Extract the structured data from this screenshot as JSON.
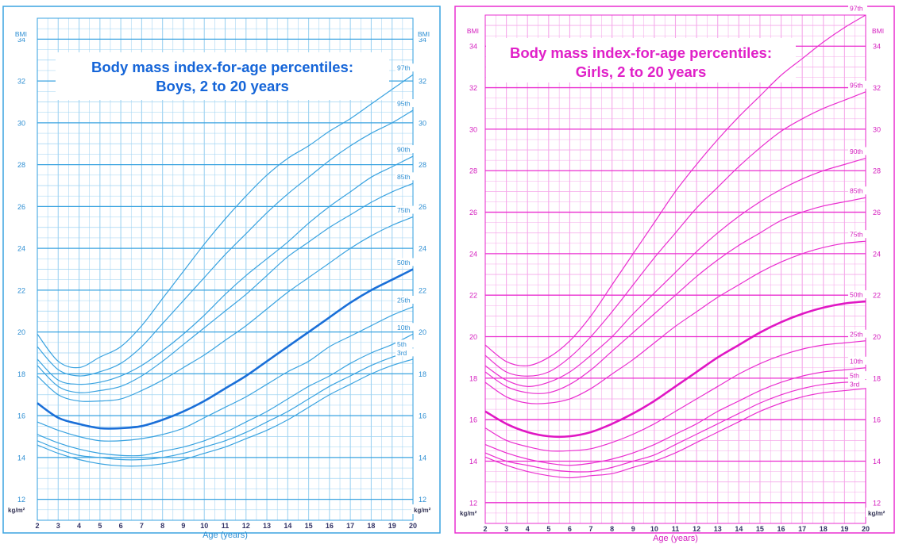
{
  "chart_data": [
    {
      "type": "line",
      "title_line1": "Body mass index-for-age percentiles:",
      "title_line2": "Boys, 2 to 20 years",
      "xlabel": "Age (years)",
      "ylabel_top": "BMI",
      "ylabel_bottom": "kg/m²",
      "xlim": [
        2,
        20
      ],
      "ylim": [
        11,
        35
      ],
      "xticks": [
        2,
        3,
        4,
        5,
        6,
        7,
        8,
        9,
        10,
        11,
        12,
        13,
        14,
        15,
        16,
        17,
        18,
        19,
        20
      ],
      "yticks": [
        12,
        14,
        16,
        18,
        20,
        22,
        24,
        26,
        28,
        30,
        32,
        34
      ],
      "grid": true,
      "colors": {
        "line": "#3aa3e0",
        "grid": "#9fd3f2",
        "text": "#2e8fd3",
        "title": "#1565d8",
        "median": "#1a6fd8"
      },
      "x": [
        2,
        3,
        4,
        5,
        6,
        7,
        8,
        9,
        10,
        11,
        12,
        13,
        14,
        15,
        16,
        17,
        18,
        19,
        20
      ],
      "series": [
        {
          "name": "97th",
          "values": [
            19.9,
            18.6,
            18.3,
            18.8,
            19.3,
            20.3,
            21.6,
            22.9,
            24.2,
            25.4,
            26.5,
            27.5,
            28.3,
            28.9,
            29.6,
            30.2,
            30.9,
            31.6,
            32.3
          ]
        },
        {
          "name": "95th",
          "values": [
            19.3,
            18.2,
            17.9,
            18.1,
            18.5,
            19.3,
            20.4,
            21.5,
            22.6,
            23.7,
            24.7,
            25.7,
            26.6,
            27.4,
            28.2,
            28.9,
            29.5,
            30.0,
            30.6
          ]
        },
        {
          "name": "90th",
          "values": [
            18.7,
            17.7,
            17.5,
            17.6,
            17.9,
            18.4,
            19.1,
            19.9,
            20.8,
            21.8,
            22.7,
            23.5,
            24.3,
            25.2,
            26.0,
            26.7,
            27.4,
            27.9,
            28.4
          ]
        },
        {
          "name": "85th",
          "values": [
            18.4,
            17.4,
            17.1,
            17.2,
            17.4,
            17.9,
            18.6,
            19.4,
            20.2,
            21.0,
            21.8,
            22.7,
            23.6,
            24.3,
            25.0,
            25.6,
            26.2,
            26.7,
            27.1
          ]
        },
        {
          "name": "75th",
          "values": [
            17.9,
            17.0,
            16.7,
            16.7,
            16.8,
            17.2,
            17.7,
            18.3,
            18.9,
            19.6,
            20.3,
            21.1,
            21.9,
            22.6,
            23.3,
            24.0,
            24.6,
            25.1,
            25.5
          ]
        },
        {
          "name": "50th",
          "values": [
            16.6,
            15.9,
            15.6,
            15.4,
            15.4,
            15.5,
            15.8,
            16.2,
            16.7,
            17.3,
            17.9,
            18.6,
            19.3,
            20.0,
            20.7,
            21.4,
            22.0,
            22.5,
            23.0
          ]
        },
        {
          "name": "25th",
          "values": [
            15.7,
            15.3,
            15.0,
            14.8,
            14.8,
            14.9,
            15.1,
            15.4,
            15.9,
            16.4,
            16.9,
            17.5,
            18.1,
            18.6,
            19.3,
            19.8,
            20.3,
            20.8,
            21.2
          ]
        },
        {
          "name": "10th",
          "values": [
            15.1,
            14.7,
            14.4,
            14.2,
            14.1,
            14.1,
            14.3,
            14.5,
            14.8,
            15.2,
            15.7,
            16.2,
            16.8,
            17.4,
            17.9,
            18.5,
            19.0,
            19.4,
            19.9
          ]
        },
        {
          "name": "5th",
          "values": [
            14.8,
            14.4,
            14.1,
            14.0,
            13.9,
            13.9,
            14.0,
            14.2,
            14.5,
            14.8,
            15.2,
            15.7,
            16.2,
            16.8,
            17.4,
            17.9,
            18.4,
            18.8,
            19.1
          ]
        },
        {
          "name": "3rd",
          "values": [
            14.6,
            14.2,
            13.9,
            13.7,
            13.6,
            13.6,
            13.7,
            13.9,
            14.2,
            14.5,
            14.9,
            15.3,
            15.8,
            16.4,
            17.0,
            17.5,
            18.0,
            18.4,
            18.7
          ]
        }
      ]
    },
    {
      "type": "line",
      "title_line1": "Body mass index-for-age percentiles:",
      "title_line2": "Girls, 2 to 20 years",
      "xlabel": "Age (years)",
      "ylabel_top": "BMI",
      "ylabel_bottom": "kg/m²",
      "xlim": [
        2,
        20
      ],
      "ylim": [
        11,
        35.5
      ],
      "xticks": [
        2,
        3,
        4,
        5,
        6,
        7,
        8,
        9,
        10,
        11,
        12,
        13,
        14,
        15,
        16,
        17,
        18,
        19,
        20
      ],
      "yticks": [
        12,
        14,
        16,
        18,
        20,
        22,
        24,
        26,
        28,
        30,
        32,
        34
      ],
      "grid": true,
      "colors": {
        "line": "#ea2fd0",
        "grid": "#f5a8ea",
        "text": "#d51fbf",
        "title": "#e020c8",
        "median": "#e017c4"
      },
      "x": [
        2,
        3,
        4,
        5,
        6,
        7,
        8,
        9,
        10,
        11,
        12,
        13,
        14,
        15,
        16,
        17,
        18,
        19,
        20
      ],
      "series": [
        {
          "name": "97th",
          "values": [
            19.6,
            18.8,
            18.6,
            19.0,
            19.8,
            21.0,
            22.5,
            24.0,
            25.5,
            27.0,
            28.3,
            29.5,
            30.6,
            31.6,
            32.6,
            33.4,
            34.2,
            34.9,
            35.5
          ]
        },
        {
          "name": "95th",
          "values": [
            19.1,
            18.3,
            18.1,
            18.3,
            19.0,
            20.0,
            21.2,
            22.5,
            23.8,
            25.0,
            26.2,
            27.2,
            28.2,
            29.1,
            29.9,
            30.5,
            31.0,
            31.4,
            31.8
          ]
        },
        {
          "name": "90th",
          "values": [
            18.6,
            17.9,
            17.6,
            17.8,
            18.3,
            19.1,
            20.0,
            21.1,
            22.1,
            23.1,
            24.1,
            25.0,
            25.8,
            26.5,
            27.1,
            27.6,
            28.0,
            28.3,
            28.6
          ]
        },
        {
          "name": "85th",
          "values": [
            18.3,
            17.6,
            17.3,
            17.3,
            17.7,
            18.4,
            19.3,
            20.2,
            21.1,
            22.0,
            22.9,
            23.7,
            24.4,
            25.0,
            25.6,
            26.0,
            26.3,
            26.5,
            26.7
          ]
        },
        {
          "name": "75th",
          "values": [
            17.8,
            17.1,
            16.8,
            16.8,
            17.0,
            17.5,
            18.2,
            18.9,
            19.7,
            20.5,
            21.2,
            21.9,
            22.5,
            23.1,
            23.6,
            24.0,
            24.3,
            24.5,
            24.6
          ]
        },
        {
          "name": "50th",
          "values": [
            16.4,
            15.8,
            15.4,
            15.2,
            15.2,
            15.4,
            15.8,
            16.3,
            16.9,
            17.6,
            18.3,
            19.0,
            19.6,
            20.2,
            20.7,
            21.1,
            21.4,
            21.6,
            21.7
          ]
        },
        {
          "name": "25th",
          "values": [
            15.6,
            15.0,
            14.7,
            14.5,
            14.5,
            14.6,
            14.9,
            15.3,
            15.8,
            16.4,
            17.0,
            17.6,
            18.2,
            18.7,
            19.1,
            19.4,
            19.6,
            19.7,
            19.8
          ]
        },
        {
          "name": "10th",
          "values": [
            14.8,
            14.4,
            14.1,
            13.9,
            13.8,
            13.9,
            14.1,
            14.4,
            14.8,
            15.3,
            15.8,
            16.4,
            16.9,
            17.4,
            17.8,
            18.1,
            18.3,
            18.4,
            18.5
          ]
        },
        {
          "name": "5th",
          "values": [
            14.4,
            14.0,
            13.8,
            13.6,
            13.5,
            13.5,
            13.7,
            14.0,
            14.3,
            14.8,
            15.3,
            15.8,
            16.3,
            16.8,
            17.2,
            17.5,
            17.7,
            17.8,
            17.8
          ]
        },
        {
          "name": "3rd",
          "values": [
            14.2,
            13.8,
            13.5,
            13.3,
            13.2,
            13.3,
            13.4,
            13.7,
            14.0,
            14.4,
            14.9,
            15.4,
            15.9,
            16.4,
            16.8,
            17.1,
            17.3,
            17.4,
            17.5
          ]
        }
      ]
    }
  ]
}
